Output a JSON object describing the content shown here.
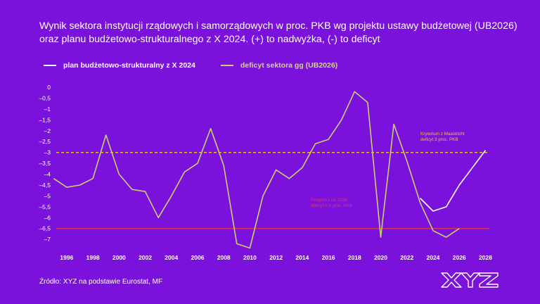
{
  "header": {
    "title_line1": "Wynik sektora instytucji rządowych i samorządowych w proc. PKB wg projektu ustawy budżetowej (UB2026)",
    "title_line2": "oraz planu budżetowo-strukturalnego z X 2024. (+) to nadwyżka, (-) to deficyt"
  },
  "footer": {
    "source": "Źródło: XYZ na podstawie Eurostat, MF",
    "logo_text": "XYZ"
  },
  "colors": {
    "background": "#7a12dc",
    "plan_line": "#ffffff",
    "deficit_line": "#c6d06e",
    "maastricht_line": "#f2c618",
    "forecast_line": "#e8384a",
    "grid": "#9a55e8"
  },
  "chart_data": {
    "type": "line",
    "xlim": [
      1995.2,
      2028.3
    ],
    "ylim": [
      -7.35,
      0
    ],
    "y_ticks": [
      0,
      -0.5,
      -1,
      -1.5,
      -2,
      -2.5,
      -3,
      -3.5,
      -4,
      -4.5,
      -5,
      -5.5,
      -6,
      -6.5,
      -7
    ],
    "y_tick_labels": [
      "0",
      "–0,5",
      "–1",
      "–1,5",
      "–2",
      "–2,5",
      "–3",
      "–3,5",
      "–4",
      "–4,5",
      "–5",
      "–5,5",
      "–6",
      "–6,5",
      "–7"
    ],
    "x_ticks": [
      1996,
      1998,
      2000,
      2002,
      2004,
      2006,
      2008,
      2010,
      2012,
      2014,
      2016,
      2018,
      2020,
      2022,
      2024,
      2026,
      2028
    ],
    "grid": true,
    "series": [
      {
        "name": "plan budżetowo-strukturalny z X 2024",
        "x": [
          2023,
          2024,
          2025,
          2026,
          2027,
          2028
        ],
        "values": [
          -5.1,
          -5.7,
          -5.5,
          -4.5,
          -3.7,
          -2.9
        ]
      },
      {
        "name": "deficyt sektora gg (UB2026)",
        "x": [
          1995,
          1996,
          1997,
          1998,
          1999,
          2000,
          2001,
          2002,
          2003,
          2004,
          2005,
          2006,
          2007,
          2008,
          2009,
          2010,
          2011,
          2012,
          2013,
          2014,
          2015,
          2016,
          2017,
          2018,
          2019,
          2020,
          2021,
          2022,
          2023,
          2024,
          2025,
          2026
        ],
        "values": [
          -4.2,
          -4.6,
          -4.5,
          -4.2,
          -2.2,
          -4.0,
          -4.7,
          -4.8,
          -6.0,
          -5.0,
          -3.9,
          -3.5,
          -1.9,
          -3.6,
          -7.2,
          -7.4,
          -5.0,
          -3.8,
          -4.2,
          -3.7,
          -2.6,
          -2.4,
          -1.5,
          -0.2,
          -0.7,
          -6.9,
          -1.7,
          -3.4,
          -5.3,
          -6.6,
          -6.9,
          -6.5
        ]
      }
    ],
    "reference_lines": [
      {
        "y": -3,
        "label_line1": "Kryterium z Maastricht",
        "label_line2": "deficyt 3 proc. PKB",
        "style": "dashed"
      },
      {
        "y": -6.5,
        "label_line1": "Prognoza na 2026:",
        "label_line2": "deficyt 6,5 proc. PKB",
        "style": "solid"
      }
    ]
  }
}
